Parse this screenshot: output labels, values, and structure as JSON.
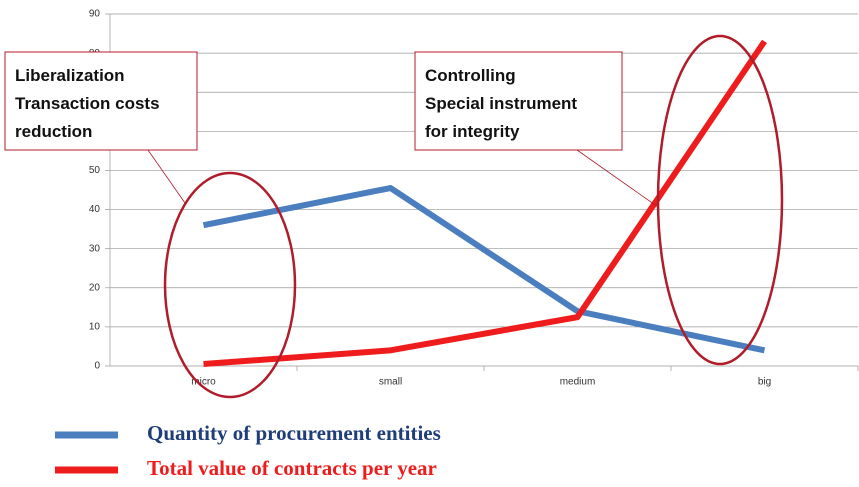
{
  "chart_data": {
    "type": "line",
    "categories": [
      "micro",
      "small",
      "medium",
      "big"
    ],
    "series": [
      {
        "name": "Quantity of procurement entities",
        "color": "#4a7ebf",
        "values": [
          36,
          45.5,
          14,
          4
        ]
      },
      {
        "name": "Total value of contracts per year",
        "color": "#ee1c1c",
        "values": [
          0.5,
          4,
          12.5,
          83
        ]
      }
    ],
    "ylim": [
      0,
      90
    ],
    "yticks": [
      0,
      10,
      20,
      30,
      40,
      50,
      60,
      70,
      80,
      90
    ],
    "grid": true,
    "annotations": [
      {
        "lines": [
          "Liberalization",
          "Transaction costs",
          "reduction"
        ]
      },
      {
        "lines": [
          "Controlling",
          "Special instrument",
          "for integrity"
        ]
      }
    ]
  }
}
